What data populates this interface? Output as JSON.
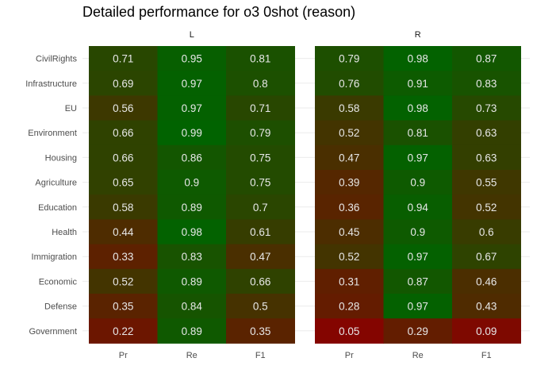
{
  "chart_data": {
    "type": "heatmap",
    "title": "Detailed performance for o3 0shot (reason)",
    "rows": [
      "CivilRights",
      "Infrastructure",
      "EU",
      "Environment",
      "Housing",
      "Agriculture",
      "Education",
      "Health",
      "Immigration",
      "Economic",
      "Defense",
      "Government"
    ],
    "columns": [
      "Pr",
      "Re",
      "F1"
    ],
    "panels": [
      {
        "name": "L",
        "values": [
          [
            0.71,
            0.95,
            0.81
          ],
          [
            0.69,
            0.97,
            0.8
          ],
          [
            0.56,
            0.97,
            0.71
          ],
          [
            0.66,
            0.99,
            0.79
          ],
          [
            0.66,
            0.86,
            0.75
          ],
          [
            0.65,
            0.9,
            0.75
          ],
          [
            0.58,
            0.89,
            0.7
          ],
          [
            0.44,
            0.98,
            0.61
          ],
          [
            0.33,
            0.83,
            0.47
          ],
          [
            0.52,
            0.89,
            0.66
          ],
          [
            0.35,
            0.84,
            0.5
          ],
          [
            0.22,
            0.89,
            0.35
          ]
        ]
      },
      {
        "name": "R",
        "values": [
          [
            0.79,
            0.98,
            0.87
          ],
          [
            0.76,
            0.91,
            0.83
          ],
          [
            0.58,
            0.98,
            0.73
          ],
          [
            0.52,
            0.81,
            0.63
          ],
          [
            0.47,
            0.97,
            0.63
          ],
          [
            0.39,
            0.9,
            0.55
          ],
          [
            0.36,
            0.94,
            0.52
          ],
          [
            0.45,
            0.9,
            0.6
          ],
          [
            0.52,
            0.97,
            0.67
          ],
          [
            0.31,
            0.87,
            0.46
          ],
          [
            0.28,
            0.97,
            0.43
          ],
          [
            0.05,
            0.29,
            0.09
          ]
        ]
      }
    ],
    "color_scale": {
      "low": "#8b0000",
      "high": "#006400",
      "domain": [
        0,
        1
      ]
    },
    "legend": "none",
    "grid": true
  }
}
